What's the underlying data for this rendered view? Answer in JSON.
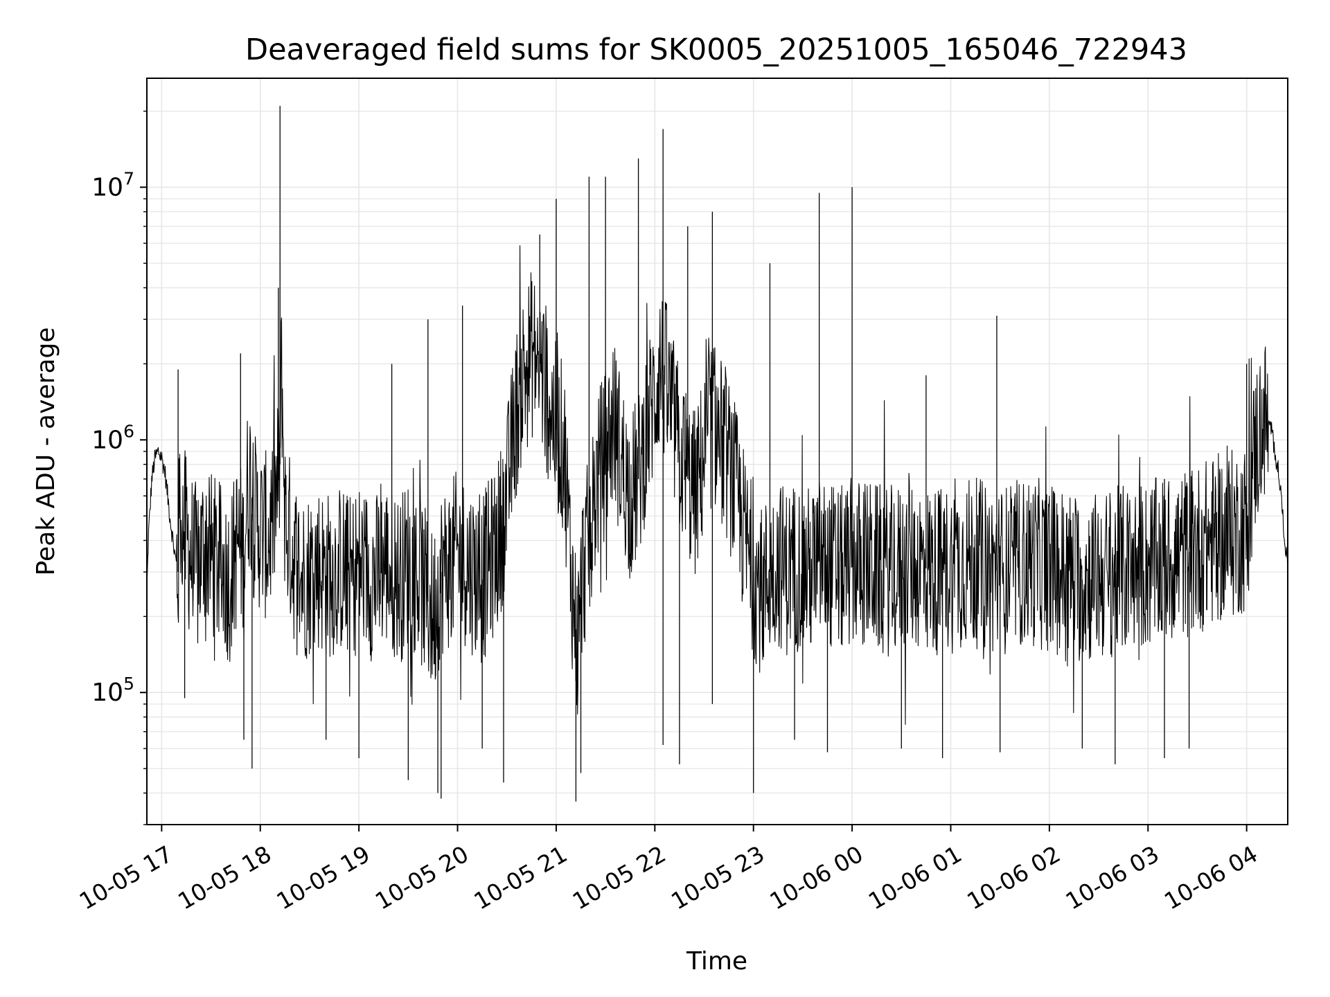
{
  "chart_data": {
    "type": "line",
    "title": "Deaveraged field sums for SK0005_20251005_165046_722943",
    "xlabel": "Time",
    "ylabel": "Peak ADU - average",
    "yscale": "log",
    "ylim": [
      30000,
      27000000
    ],
    "xlim": [
      "2025-10-05 16:51",
      "2025-10-06 04:25"
    ],
    "grid": true,
    "line_color": "#000000",
    "grid_color": "#e6e6e6",
    "x_ticks": [
      {
        "label": "10-05 17",
        "value": "2025-10-05 17:00"
      },
      {
        "label": "10-05 18",
        "value": "2025-10-05 18:00"
      },
      {
        "label": "10-05 19",
        "value": "2025-10-05 19:00"
      },
      {
        "label": "10-05 20",
        "value": "2025-10-05 20:00"
      },
      {
        "label": "10-05 21",
        "value": "2025-10-05 21:00"
      },
      {
        "label": "10-05 22",
        "value": "2025-10-05 22:00"
      },
      {
        "label": "10-05 23",
        "value": "2025-10-05 23:00"
      },
      {
        "label": "10-06 00",
        "value": "2025-10-06 00:00"
      },
      {
        "label": "10-06 01",
        "value": "2025-10-06 01:00"
      },
      {
        "label": "10-06 02",
        "value": "2025-10-06 02:00"
      },
      {
        "label": "10-06 03",
        "value": "2025-10-06 03:00"
      },
      {
        "label": "10-06 04",
        "value": "2025-10-06 04:00"
      }
    ],
    "y_ticks": [
      {
        "value": 100000,
        "mantissa": "10",
        "exponent": "5"
      },
      {
        "value": 1000000,
        "mantissa": "10",
        "exponent": "6"
      },
      {
        "value": 10000000,
        "mantissa": "10",
        "exponent": "7"
      }
    ],
    "series": [
      {
        "x": [
          "2025-10-05 16:51",
          "2025-10-05 16:52",
          "2025-10-05 16:54",
          "2025-10-05 16:56",
          "2025-10-05 16:58",
          "2025-10-05 17:00",
          "2025-10-05 17:02",
          "2025-10-05 17:05",
          "2025-10-05 17:08",
          "2025-10-05 17:10",
          "2025-10-05 17:11",
          "2025-10-05 17:15",
          "2025-10-05 17:18",
          "2025-10-05 17:22",
          "2025-10-05 17:26",
          "2025-10-05 17:30",
          "2025-10-05 17:34",
          "2025-10-05 17:38",
          "2025-10-05 17:42",
          "2025-10-05 17:46",
          "2025-10-05 17:50",
          "2025-10-05 17:52",
          "2025-10-05 17:54",
          "2025-10-05 17:56",
          "2025-10-05 18:00",
          "2025-10-05 18:05",
          "2025-10-05 18:10",
          "2025-10-05 18:12",
          "2025-10-05 18:13",
          "2025-10-05 18:15",
          "2025-10-05 18:20",
          "2025-10-05 18:25",
          "2025-10-05 18:30",
          "2025-10-05 18:35",
          "2025-10-05 18:40",
          "2025-10-05 18:45",
          "2025-10-05 18:50",
          "2025-10-05 18:55",
          "2025-10-05 19:00",
          "2025-10-05 19:05",
          "2025-10-05 19:10",
          "2025-10-05 19:15",
          "2025-10-05 19:20",
          "2025-10-05 19:25",
          "2025-10-05 19:30",
          "2025-10-05 19:35",
          "2025-10-05 19:40",
          "2025-10-05 19:45",
          "2025-10-05 19:50",
          "2025-10-05 19:55",
          "2025-10-05 20:00",
          "2025-10-05 20:05",
          "2025-10-05 20:10",
          "2025-10-05 20:15",
          "2025-10-05 20:20",
          "2025-10-05 20:25",
          "2025-10-05 20:30",
          "2025-10-05 20:35",
          "2025-10-05 20:40",
          "2025-10-05 20:45",
          "2025-10-05 20:50",
          "2025-10-05 20:55",
          "2025-10-05 21:00",
          "2025-10-05 21:05",
          "2025-10-05 21:08",
          "2025-10-05 21:10",
          "2025-10-05 21:13",
          "2025-10-05 21:16",
          "2025-10-05 21:20",
          "2025-10-05 21:25",
          "2025-10-05 21:30",
          "2025-10-05 21:35",
          "2025-10-05 21:40",
          "2025-10-05 21:45",
          "2025-10-05 21:50",
          "2025-10-05 21:55",
          "2025-10-05 22:00",
          "2025-10-05 22:03",
          "2025-10-05 22:06",
          "2025-10-05 22:10",
          "2025-10-05 22:15",
          "2025-10-05 22:20",
          "2025-10-05 22:25",
          "2025-10-05 22:30",
          "2025-10-05 22:35",
          "2025-10-05 22:40",
          "2025-10-05 22:45",
          "2025-10-05 22:50",
          "2025-10-05 22:55",
          "2025-10-05 23:00",
          "2025-10-05 23:05",
          "2025-10-05 23:10",
          "2025-10-05 23:15",
          "2025-10-05 23:20",
          "2025-10-05 23:25",
          "2025-10-05 23:30",
          "2025-10-05 23:35",
          "2025-10-05 23:40",
          "2025-10-05 23:45",
          "2025-10-05 23:50",
          "2025-10-05 23:55",
          "2025-10-06 00:00",
          "2025-10-06 00:10",
          "2025-10-06 00:20",
          "2025-10-06 00:30",
          "2025-10-06 00:40",
          "2025-10-06 00:50",
          "2025-10-06 01:00",
          "2025-10-06 01:10",
          "2025-10-06 01:20",
          "2025-10-06 01:25",
          "2025-10-06 01:30",
          "2025-10-06 01:40",
          "2025-10-06 01:50",
          "2025-10-06 02:00",
          "2025-10-06 02:10",
          "2025-10-06 02:20",
          "2025-10-06 02:30",
          "2025-10-06 02:40",
          "2025-10-06 02:50",
          "2025-10-06 03:00",
          "2025-10-06 03:10",
          "2025-10-06 03:20",
          "2025-10-06 03:30",
          "2025-10-06 03:40",
          "2025-10-06 03:50",
          "2025-10-06 04:00",
          "2025-10-06 04:05",
          "2025-10-06 04:10",
          "2025-10-06 04:15",
          "2025-10-06 04:20",
          "2025-10-06 04:25"
        ],
        "y": [
          250000,
          420000,
          700000,
          850000,
          900000,
          850000,
          750000,
          500000,
          350000,
          300000,
          550000,
          400000,
          350000,
          300000,
          400000,
          350000,
          320000,
          300000,
          280000,
          400000,
          350000,
          600000,
          700000,
          500000,
          450000,
          400000,
          600000,
          800000,
          2000000,
          500000,
          350000,
          280000,
          300000,
          320000,
          290000,
          300000,
          310000,
          280000,
          320000,
          300000,
          280000,
          330000,
          300000,
          280000,
          330000,
          300000,
          250000,
          200000,
          300000,
          320000,
          350000,
          330000,
          300000,
          280000,
          330000,
          400000,
          600000,
          1200000,
          1800000,
          2200000,
          2000000,
          1500000,
          1100000,
          900000,
          400000,
          250000,
          150000,
          300000,
          400000,
          700000,
          900000,
          1200000,
          800000,
          600000,
          700000,
          1100000,
          1500000,
          2000000,
          1700000,
          1300000,
          900000,
          700000,
          600000,
          900000,
          1200000,
          1000000,
          800000,
          600000,
          400000,
          300000,
          250000,
          300000,
          330000,
          300000,
          320000,
          310000,
          300000,
          330000,
          320000,
          310000,
          300000,
          330000,
          320000,
          300000,
          310000,
          320000,
          300000,
          310000,
          330000,
          320000,
          310000,
          300000,
          320000,
          330000,
          310000,
          300000,
          280000,
          290000,
          300000,
          310000,
          320000,
          330000,
          350000,
          370000,
          400000,
          420000,
          450000,
          900000,
          1200000,
          1100000,
          700000,
          300000
        ]
      }
    ],
    "spikes": [
      {
        "t": "2025-10-05 17:10",
        "y": 1900000
      },
      {
        "t": "2025-10-05 17:48",
        "y": 2200000
      },
      {
        "t": "2025-10-05 18:12",
        "y": 21000000
      },
      {
        "t": "2025-10-05 18:11",
        "y": 4000000
      },
      {
        "t": "2025-10-05 19:20",
        "y": 2000000
      },
      {
        "t": "2025-10-05 19:42",
        "y": 3000000
      },
      {
        "t": "2025-10-05 20:03",
        "y": 3400000
      },
      {
        "t": "2025-10-05 20:50",
        "y": 6500000
      },
      {
        "t": "2025-10-05 21:00",
        "y": 9000000
      },
      {
        "t": "2025-10-05 21:20",
        "y": 11000000
      },
      {
        "t": "2025-10-05 21:30",
        "y": 11000000
      },
      {
        "t": "2025-10-05 21:50",
        "y": 13000000
      },
      {
        "t": "2025-10-05 22:05",
        "y": 17000000
      },
      {
        "t": "2025-10-05 22:20",
        "y": 7000000
      },
      {
        "t": "2025-10-05 22:35",
        "y": 8000000
      },
      {
        "t": "2025-10-05 23:10",
        "y": 5000000
      },
      {
        "t": "2025-10-05 23:40",
        "y": 9500000
      },
      {
        "t": "2025-10-06 00:00",
        "y": 10000000
      },
      {
        "t": "2025-10-06 00:45",
        "y": 1800000
      },
      {
        "t": "2025-10-06 01:28",
        "y": 3100000
      },
      {
        "t": "2025-10-06 03:10",
        "y": 700000
      },
      {
        "t": "2025-10-06 04:00",
        "y": 2000000
      }
    ],
    "dips": [
      {
        "t": "2025-10-05 17:14",
        "y": 95000
      },
      {
        "t": "2025-10-05 17:50",
        "y": 65000
      },
      {
        "t": "2025-10-05 17:55",
        "y": 50000
      },
      {
        "t": "2025-10-05 18:40",
        "y": 65000
      },
      {
        "t": "2025-10-05 19:00",
        "y": 55000
      },
      {
        "t": "2025-10-05 19:30",
        "y": 45000
      },
      {
        "t": "2025-10-05 19:48",
        "y": 40000
      },
      {
        "t": "2025-10-05 19:50",
        "y": 38000
      },
      {
        "t": "2025-10-05 20:15",
        "y": 60000
      },
      {
        "t": "2025-10-05 20:28",
        "y": 44000
      },
      {
        "t": "2025-10-05 21:12",
        "y": 37000
      },
      {
        "t": "2025-10-05 21:15",
        "y": 48000
      },
      {
        "t": "2025-10-05 22:05",
        "y": 62000
      },
      {
        "t": "2025-10-05 22:15",
        "y": 52000
      },
      {
        "t": "2025-10-05 22:35",
        "y": 90000
      },
      {
        "t": "2025-10-05 23:00",
        "y": 40000
      },
      {
        "t": "2025-10-05 23:25",
        "y": 65000
      },
      {
        "t": "2025-10-05 23:45",
        "y": 58000
      },
      {
        "t": "2025-10-06 00:30",
        "y": 60000
      },
      {
        "t": "2025-10-06 00:55",
        "y": 55000
      },
      {
        "t": "2025-10-06 01:30",
        "y": 58000
      },
      {
        "t": "2025-10-06 02:20",
        "y": 60000
      },
      {
        "t": "2025-10-06 02:40",
        "y": 52000
      },
      {
        "t": "2025-10-06 03:10",
        "y": 55000
      },
      {
        "t": "2025-10-06 03:25",
        "y": 60000
      }
    ]
  }
}
